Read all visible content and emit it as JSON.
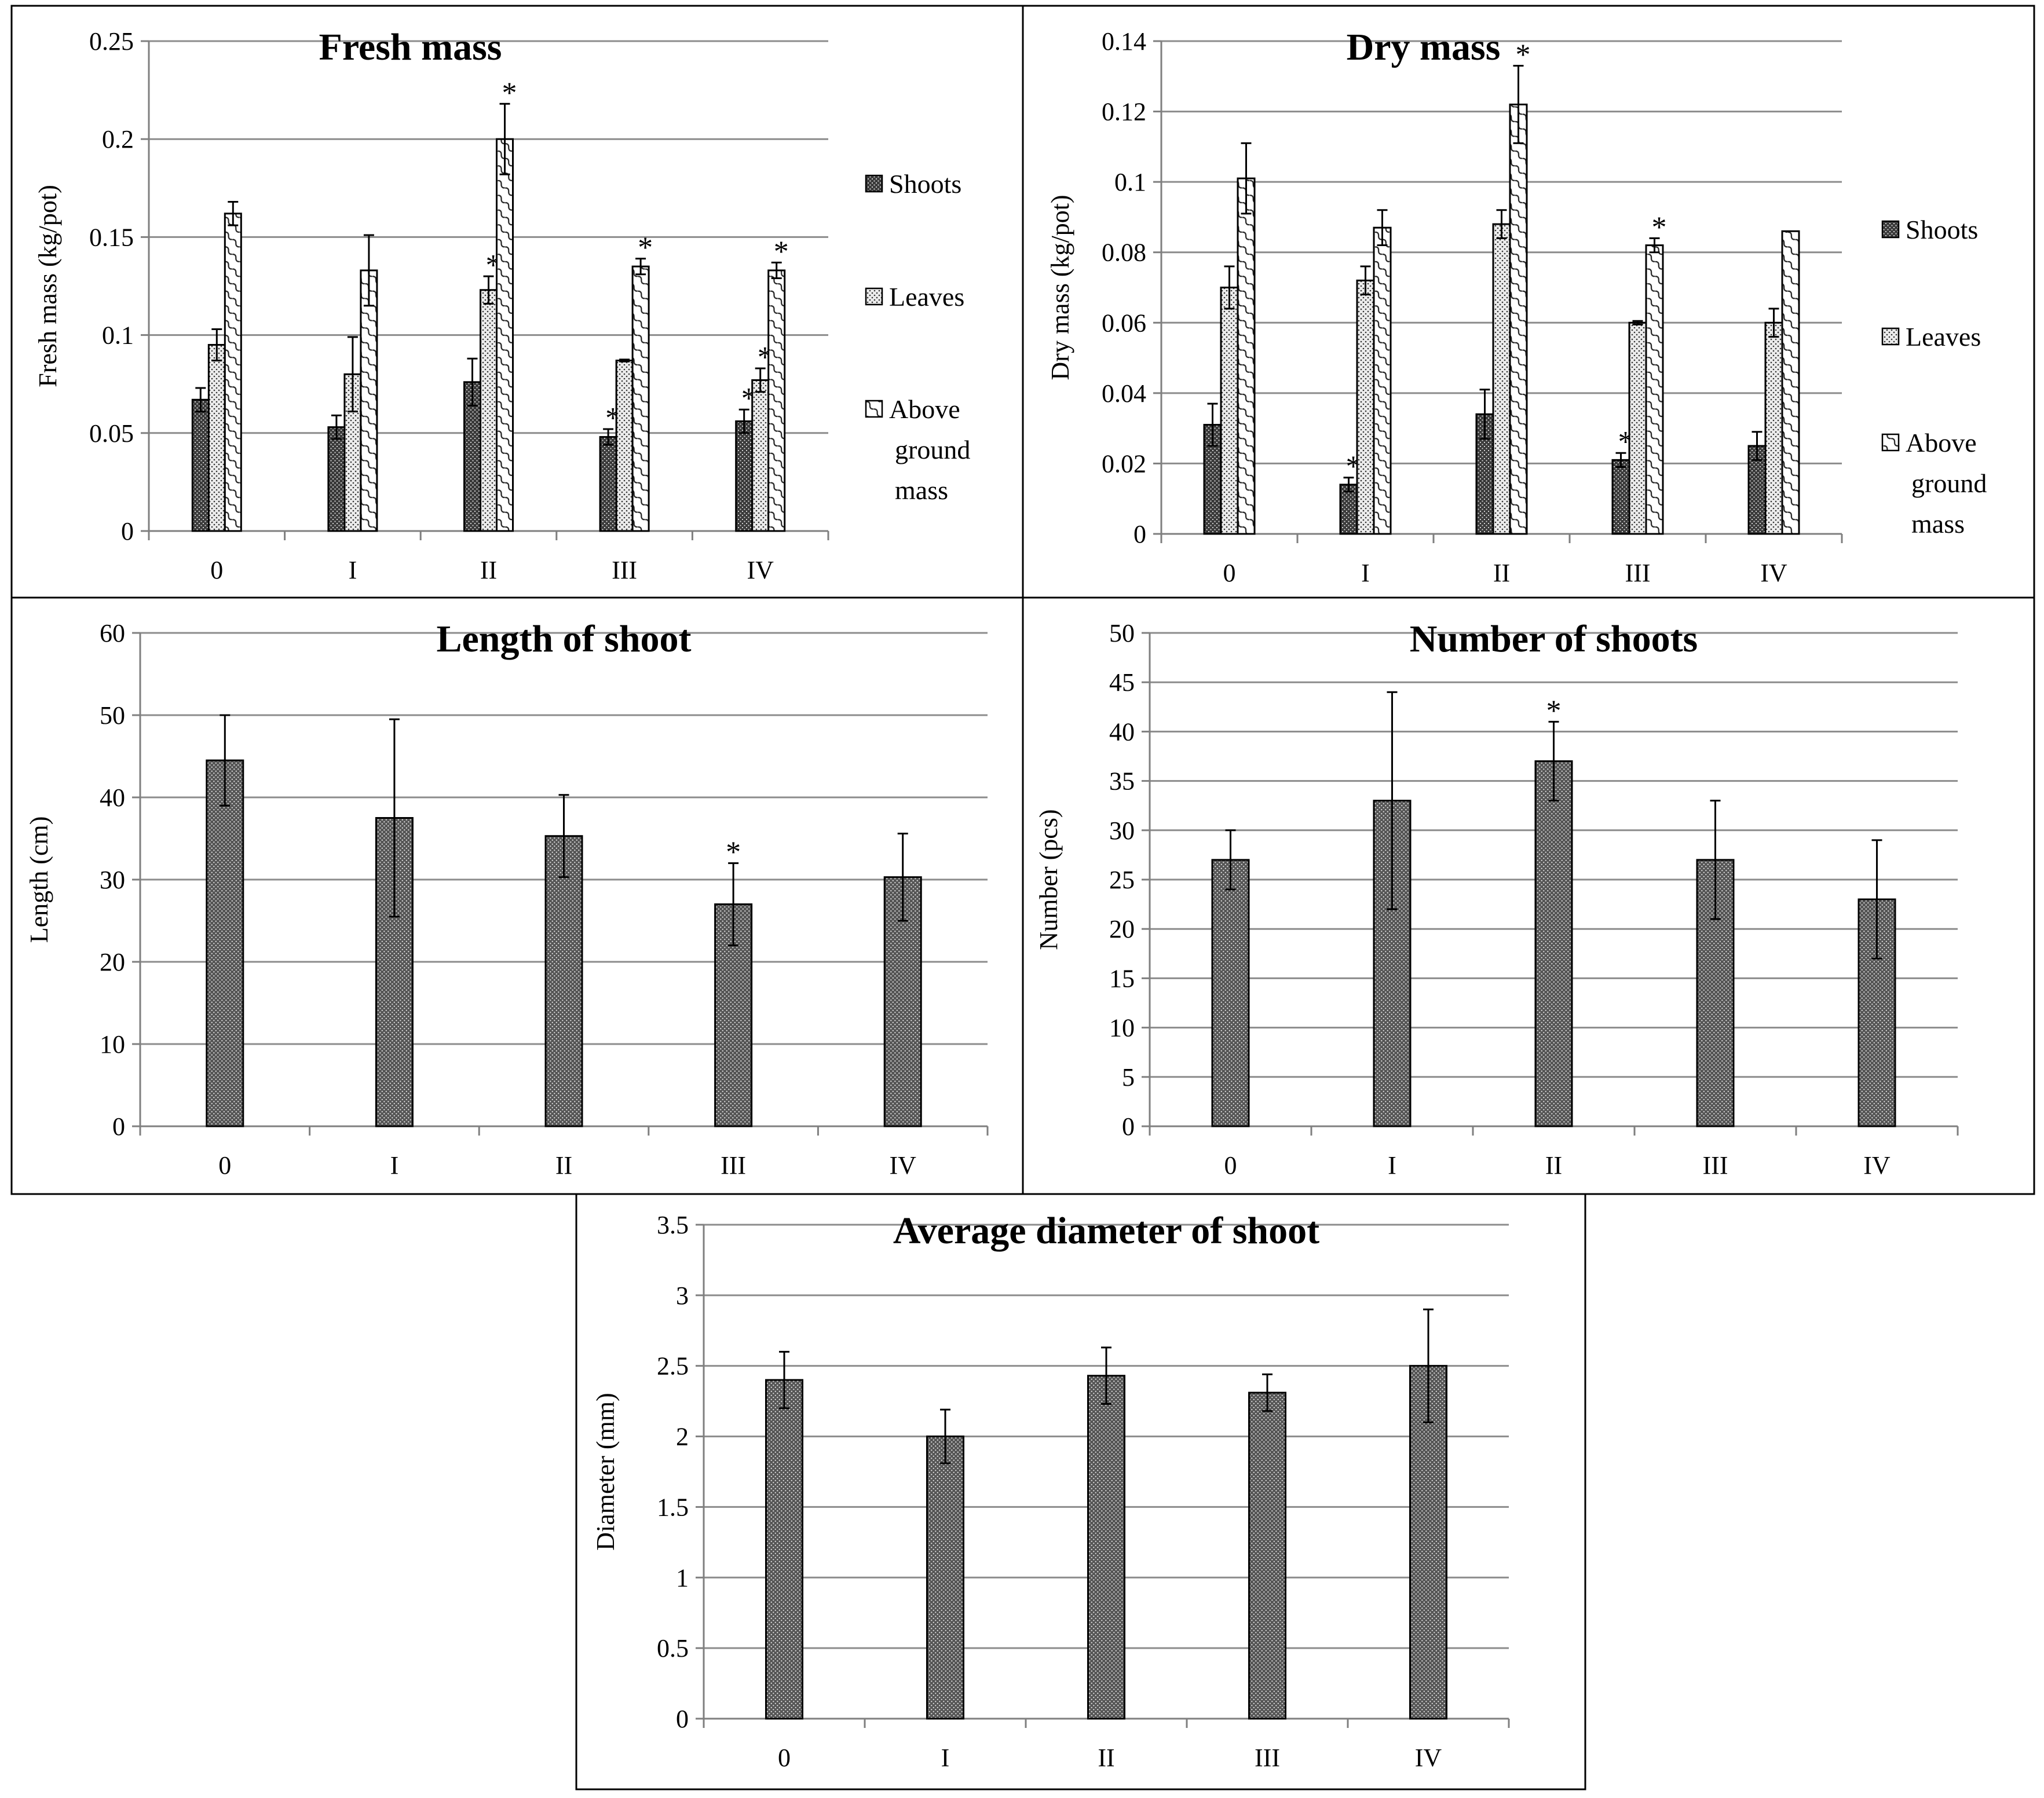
{
  "chart_data": [
    {
      "id": "fresh",
      "type": "bar",
      "title": "Fresh mass",
      "xlabel": "",
      "ylabel": "Fresh mass (kg/pot)",
      "ylim": [
        0,
        0.25
      ],
      "yticks": [
        "0",
        "0.05",
        "0.1",
        "0.15",
        "0.2",
        "0.25"
      ],
      "ytick_values": [
        0,
        0.05,
        0.1,
        0.15,
        0.2,
        0.25
      ],
      "categories": [
        "0",
        "I",
        "II",
        "III",
        "IV"
      ],
      "legend_position": "right",
      "series": [
        {
          "name": "Shoots",
          "pattern": "shoots",
          "values": [
            0.067,
            0.053,
            0.076,
            0.048,
            0.056
          ],
          "errors": [
            0.006,
            0.006,
            0.012,
            0.004,
            0.006
          ],
          "significant": [
            false,
            false,
            false,
            true,
            true
          ]
        },
        {
          "name": "Leaves",
          "pattern": "leaves",
          "values": [
            0.095,
            0.08,
            0.123,
            0.087,
            0.077
          ],
          "errors": [
            0.008,
            0.019,
            0.007,
            0.0005,
            0.006
          ],
          "significant": [
            false,
            false,
            true,
            false,
            true
          ]
        },
        {
          "name": "Above ground mass",
          "legend_lines": [
            "Above",
            "ground",
            "mass"
          ],
          "pattern": "above",
          "values": [
            0.162,
            0.133,
            0.2,
            0.135,
            0.133
          ],
          "errors": [
            0.006,
            0.018,
            0.018,
            0.004,
            0.004
          ],
          "significant": [
            false,
            false,
            true,
            true,
            true
          ]
        }
      ]
    },
    {
      "id": "dry",
      "type": "bar",
      "title": "Dry mass",
      "xlabel": "",
      "ylabel": "Dry  mass (kg/pot)",
      "ylim": [
        0,
        0.14
      ],
      "yticks": [
        "0",
        "0.02",
        "0.04",
        "0.06",
        "0.08",
        "0.1",
        "0.12",
        "0.14"
      ],
      "ytick_values": [
        0,
        0.02,
        0.04,
        0.06,
        0.08,
        0.1,
        0.12,
        0.14
      ],
      "categories": [
        "0",
        "I",
        "II",
        "III",
        "IV"
      ],
      "legend_position": "right",
      "series": [
        {
          "name": "Shoots",
          "pattern": "shoots",
          "values": [
            0.031,
            0.014,
            0.034,
            0.021,
            0.025
          ],
          "errors": [
            0.006,
            0.002,
            0.007,
            0.002,
            0.004
          ],
          "significant": [
            false,
            true,
            false,
            true,
            false
          ]
        },
        {
          "name": "Leaves",
          "pattern": "leaves",
          "values": [
            0.07,
            0.072,
            0.088,
            0.06,
            0.06
          ],
          "errors": [
            0.006,
            0.004,
            0.004,
            0.0005,
            0.004
          ],
          "significant": [
            false,
            false,
            false,
            false,
            false
          ]
        },
        {
          "name": "Above ground mass",
          "legend_lines": [
            "Above",
            "ground",
            "mass"
          ],
          "pattern": "above",
          "values": [
            0.101,
            0.087,
            0.122,
            0.082,
            0.086
          ],
          "errors": [
            0.01,
            0.005,
            0.011,
            0.002,
            0
          ],
          "significant": [
            false,
            false,
            true,
            true,
            false
          ]
        }
      ]
    },
    {
      "id": "length",
      "type": "bar",
      "title": "Length of shoot",
      "xlabel": "",
      "ylabel": "Length (cm)",
      "ylim": [
        0,
        60
      ],
      "yticks": [
        "0",
        "10",
        "20",
        "30",
        "40",
        "50",
        "60"
      ],
      "ytick_values": [
        0,
        10,
        20,
        30,
        40,
        50,
        60
      ],
      "categories": [
        "0",
        "I",
        "II",
        "III",
        "IV"
      ],
      "series": [
        {
          "name": "Length",
          "pattern": "dots",
          "values": [
            44.5,
            37.5,
            35.3,
            27.0,
            30.3
          ],
          "errors": [
            5.5,
            12.0,
            5.0,
            5.0,
            5.3
          ],
          "significant": [
            false,
            false,
            false,
            true,
            false
          ]
        }
      ]
    },
    {
      "id": "number",
      "type": "bar",
      "title": "Number of shoots",
      "xlabel": "",
      "ylabel": "Number (pcs)",
      "ylim": [
        0,
        50
      ],
      "yticks": [
        "0",
        "5",
        "10",
        "15",
        "20",
        "25",
        "30",
        "35",
        "40",
        "45",
        "50"
      ],
      "ytick_values": [
        0,
        5,
        10,
        15,
        20,
        25,
        30,
        35,
        40,
        45,
        50
      ],
      "categories": [
        "0",
        "I",
        "II",
        "III",
        "IV"
      ],
      "series": [
        {
          "name": "Number",
          "pattern": "dots",
          "values": [
            27,
            33,
            37,
            27,
            23
          ],
          "errors": [
            3,
            11,
            4,
            6,
            6
          ],
          "significant": [
            false,
            false,
            true,
            false,
            false
          ]
        }
      ]
    },
    {
      "id": "diameter",
      "type": "bar",
      "title": "Average diameter of shoot",
      "xlabel": "",
      "ylabel": "Diameter (mm)",
      "ylim": [
        0,
        3.5
      ],
      "yticks": [
        "0",
        "0.5",
        "1",
        "1.5",
        "2",
        "2.5",
        "3",
        "3.5"
      ],
      "ytick_values": [
        0,
        0.5,
        1,
        1.5,
        2,
        2.5,
        3,
        3.5
      ],
      "categories": [
        "0",
        "I",
        "II",
        "III",
        "IV"
      ],
      "series": [
        {
          "name": "Diameter",
          "pattern": "dots",
          "values": [
            2.4,
            2.0,
            2.43,
            2.31,
            2.5
          ],
          "errors": [
            0.2,
            0.19,
            0.2,
            0.13,
            0.4
          ],
          "significant": [
            false,
            false,
            false,
            false,
            false
          ]
        }
      ]
    }
  ],
  "significance_marker": "*",
  "colors": {
    "bar_fill": "#ffffff",
    "bar_pattern": "#000000",
    "grid": "#8c8c8c",
    "axis": "#7f7f7f"
  }
}
